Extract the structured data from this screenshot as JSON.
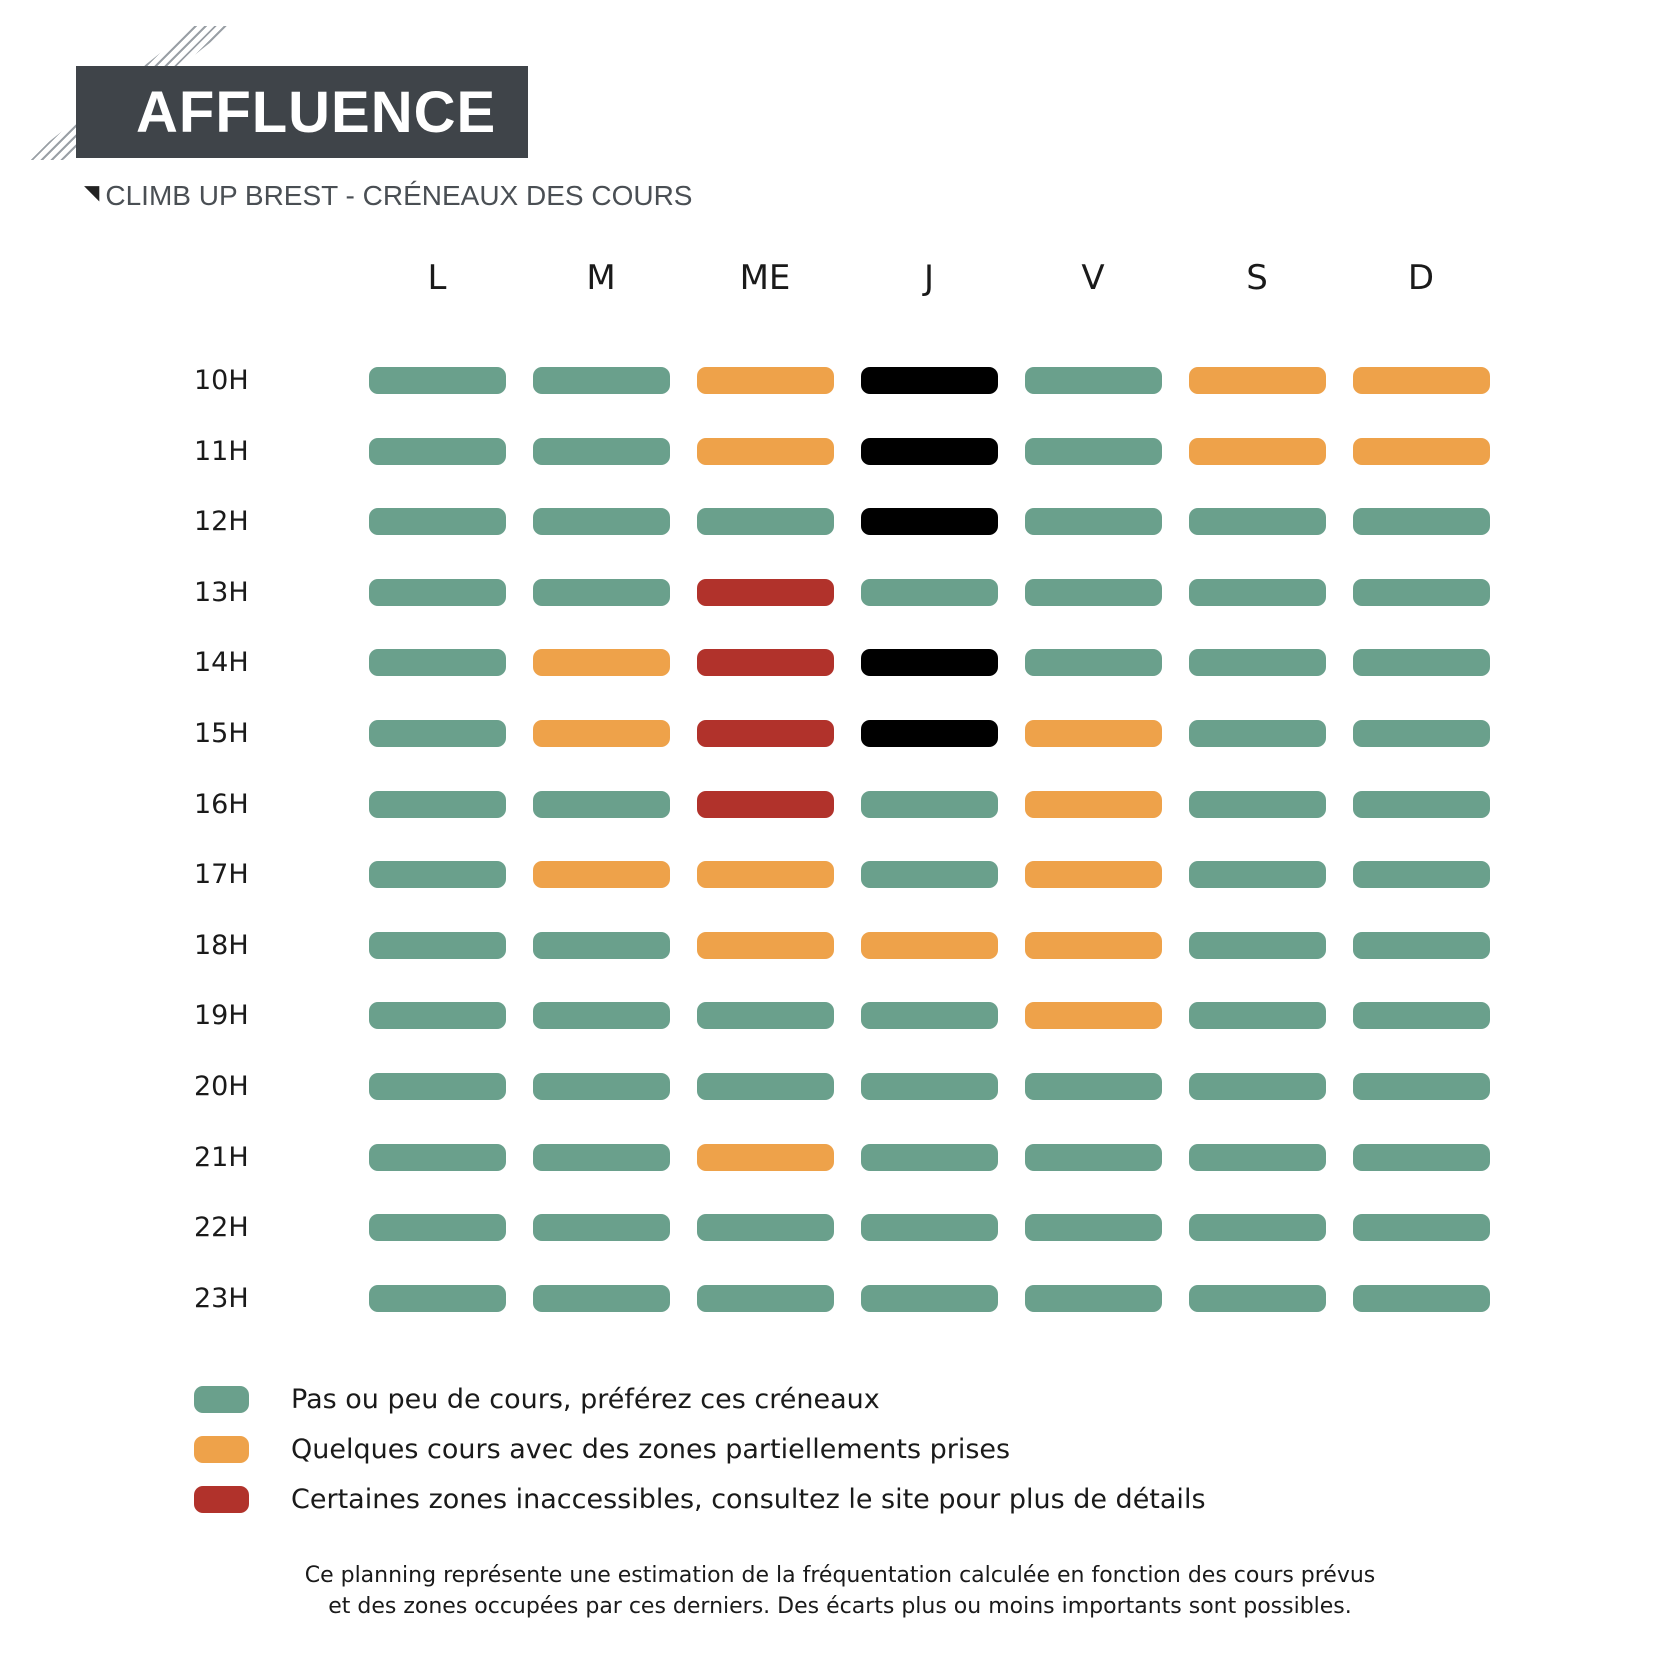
{
  "header": {
    "title": "AFFLUENCE",
    "subtitle": "CLIMB UP BREST - CRÉNEAUX DES COURS"
  },
  "colors": {
    "low": "#6aa08c",
    "medium": "#ee a24a",
    "high": "#b1322b",
    "closed": "#000000",
    "title_bg": "#3f4449"
  },
  "days": [
    "L",
    "M",
    "ME",
    "J",
    "V",
    "S",
    "D"
  ],
  "hours": [
    "10H",
    "11H",
    "12H",
    "13H",
    "14H",
    "15H",
    "16H",
    "17H",
    "18H",
    "19H",
    "20H",
    "21H",
    "22H",
    "23H"
  ],
  "grid": [
    [
      "low",
      "low",
      "medium",
      "closed",
      "low",
      "medium",
      "medium"
    ],
    [
      "low",
      "low",
      "medium",
      "closed",
      "low",
      "medium",
      "medium"
    ],
    [
      "low",
      "low",
      "low",
      "closed",
      "low",
      "low",
      "low"
    ],
    [
      "low",
      "low",
      "high",
      "low",
      "low",
      "low",
      "low"
    ],
    [
      "low",
      "medium",
      "high",
      "closed",
      "low",
      "low",
      "low"
    ],
    [
      "low",
      "medium",
      "high",
      "closed",
      "medium",
      "low",
      "low"
    ],
    [
      "low",
      "low",
      "high",
      "low",
      "medium",
      "low",
      "low"
    ],
    [
      "low",
      "medium",
      "medium",
      "low",
      "medium",
      "low",
      "low"
    ],
    [
      "low",
      "low",
      "medium",
      "medium",
      "medium",
      "low",
      "low"
    ],
    [
      "low",
      "low",
      "low",
      "low",
      "medium",
      "low",
      "low"
    ],
    [
      "low",
      "low",
      "low",
      "low",
      "low",
      "low",
      "low"
    ],
    [
      "low",
      "low",
      "medium",
      "low",
      "low",
      "low",
      "low"
    ],
    [
      "low",
      "low",
      "low",
      "low",
      "low",
      "low",
      "low"
    ],
    [
      "low",
      "low",
      "low",
      "low",
      "low",
      "low",
      "low"
    ]
  ],
  "legend": [
    {
      "level": "low",
      "label": "Pas ou peu de cours, préférez ces créneaux"
    },
    {
      "level": "medium",
      "label": "Quelques cours avec des zones partiellements prises"
    },
    {
      "level": "high",
      "label": "Certaines zones inaccessibles, consultez le site pour plus de détails"
    }
  ],
  "footer": {
    "line1": "Ce planning représente une estimation de la fréquentation calculée en fonction des cours prévus",
    "line2": "et des zones occupées par ces derniers. Des écarts plus ou moins importants sont possibles."
  }
}
